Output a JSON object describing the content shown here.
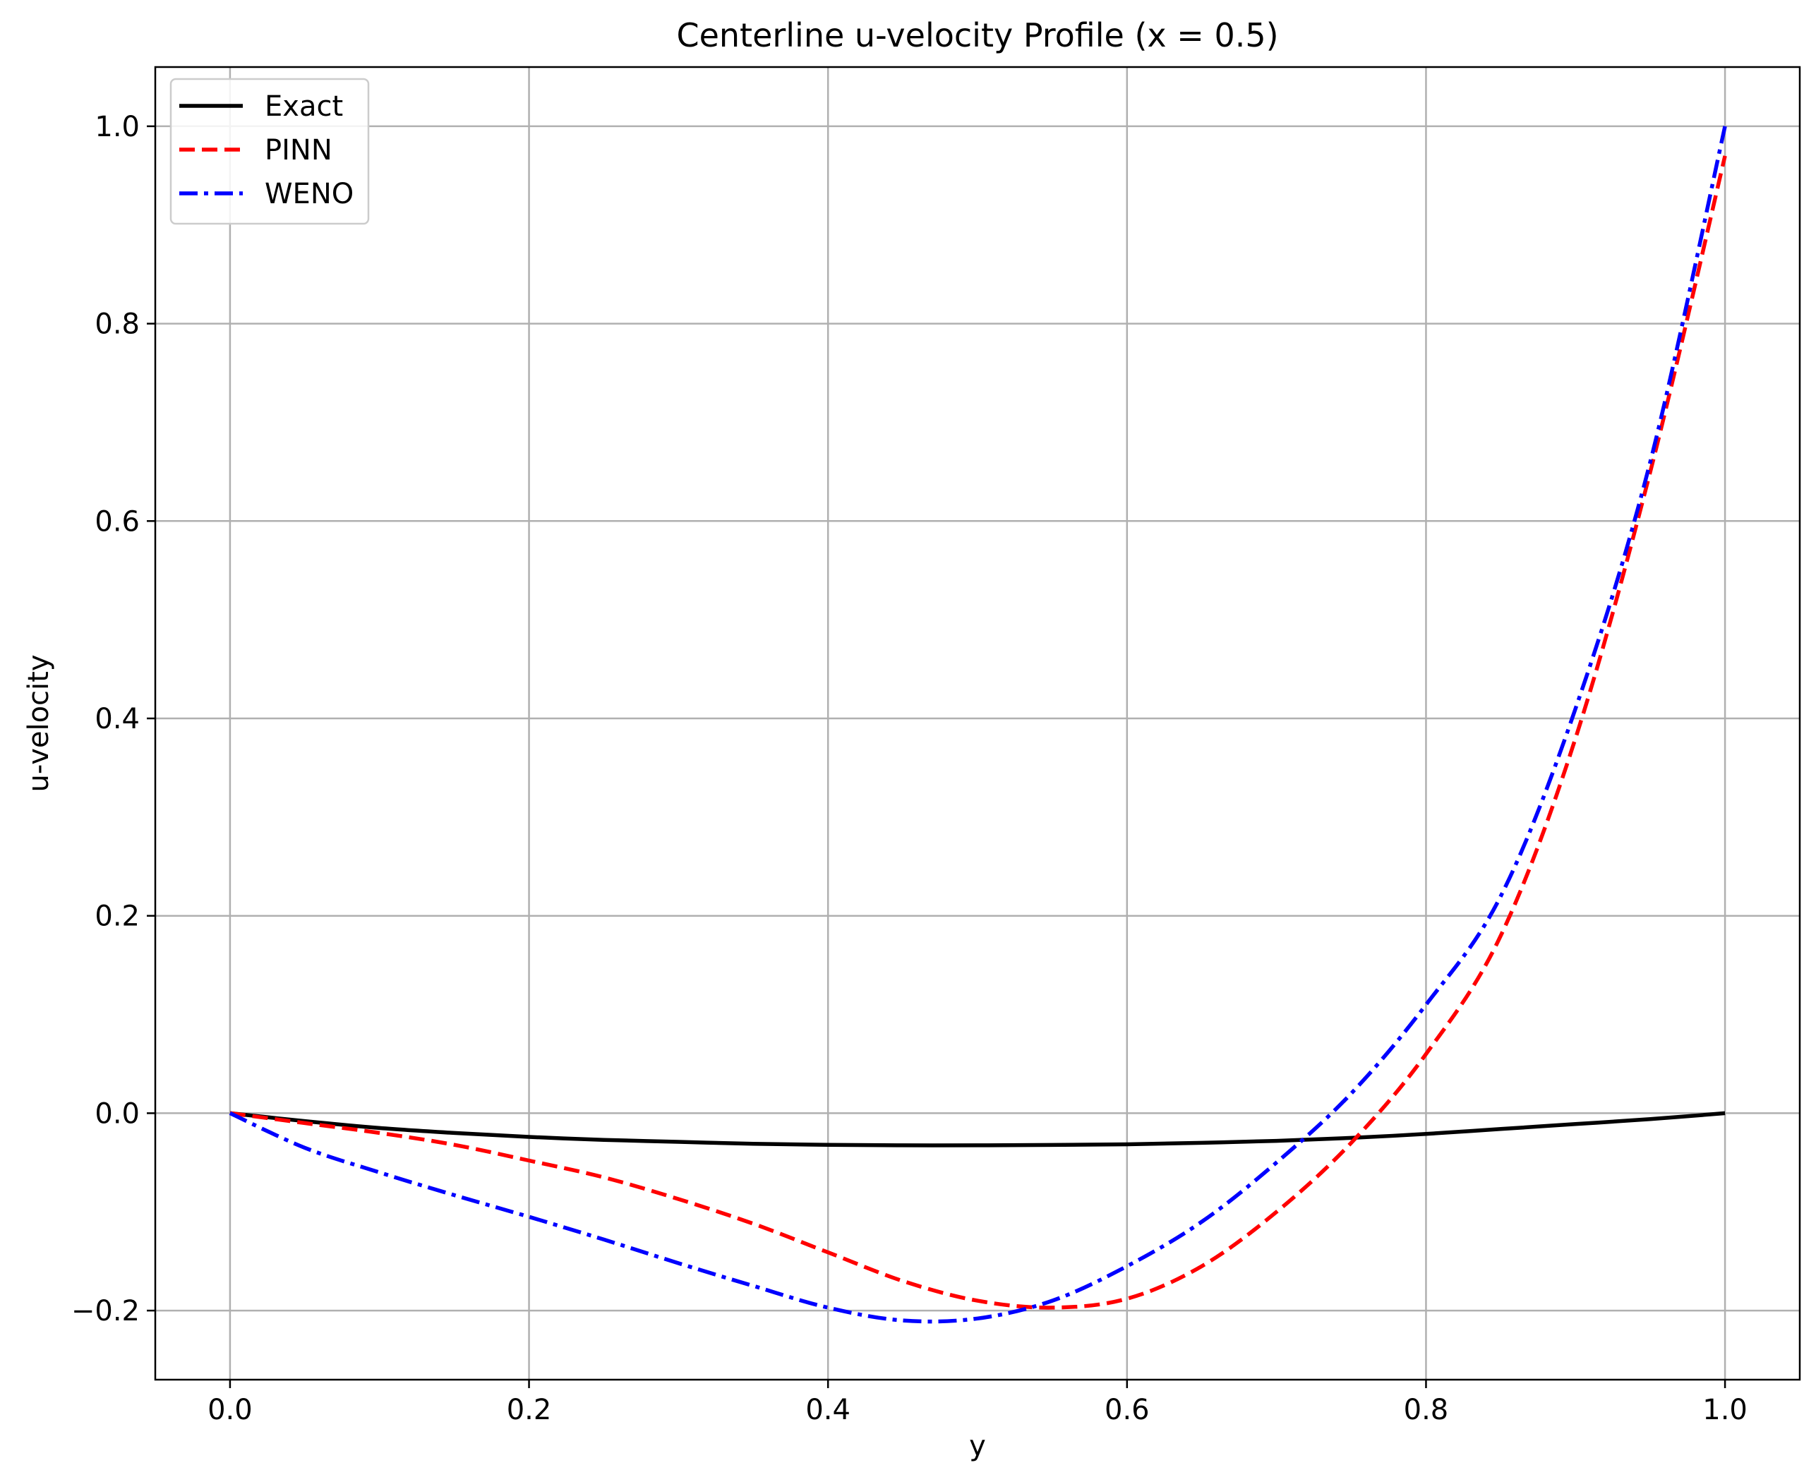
{
  "chart_data": {
    "type": "line",
    "title": "Centerline u-velocity Profile (x = 0.5)",
    "xlabel": "y",
    "ylabel": "u-velocity",
    "xlim": [
      -0.05,
      1.05
    ],
    "ylim": [
      -0.27,
      1.06
    ],
    "xticks": [
      0.0,
      0.2,
      0.4,
      0.6,
      0.8,
      1.0
    ],
    "xtick_labels": [
      "0.0",
      "0.2",
      "0.4",
      "0.6",
      "0.8",
      "1.0"
    ],
    "yticks": [
      -0.2,
      0.0,
      0.2,
      0.4,
      0.6,
      0.8,
      1.0
    ],
    "ytick_labels": [
      "−0.2",
      "0.0",
      "0.2",
      "0.4",
      "0.6",
      "0.8",
      "1.0"
    ],
    "grid": true,
    "legend_position": "top-left",
    "series": [
      {
        "name": "Exact",
        "color": "#000000",
        "style": "solid",
        "x": [
          0.0,
          0.05,
          0.1,
          0.15,
          0.2,
          0.25,
          0.3,
          0.35,
          0.4,
          0.45,
          0.5,
          0.55,
          0.6,
          0.65,
          0.7,
          0.75,
          0.8,
          0.85,
          0.9,
          0.95,
          1.0
        ],
        "y": [
          0.0,
          -0.008,
          -0.015,
          -0.02,
          -0.024,
          -0.027,
          -0.029,
          -0.031,
          -0.032,
          -0.0325,
          -0.0325,
          -0.0322,
          -0.0315,
          -0.03,
          -0.028,
          -0.025,
          -0.021,
          -0.016,
          -0.011,
          -0.006,
          0.0
        ]
      },
      {
        "name": "PINN",
        "color": "#ff0000",
        "style": "dashed",
        "x": [
          0.0,
          0.05,
          0.1,
          0.15,
          0.2,
          0.25,
          0.3,
          0.35,
          0.4,
          0.45,
          0.5,
          0.55,
          0.6,
          0.65,
          0.7,
          0.75,
          0.8,
          0.85,
          0.9,
          0.95,
          1.0
        ],
        "y": [
          0.0,
          -0.01,
          -0.02,
          -0.032,
          -0.048,
          -0.065,
          -0.087,
          -0.112,
          -0.141,
          -0.17,
          -0.19,
          -0.197,
          -0.188,
          -0.155,
          -0.1,
          -0.03,
          0.06,
          0.18,
          0.38,
          0.65,
          0.97
        ]
      },
      {
        "name": "WENO",
        "color": "#0000ff",
        "style": "dashdot",
        "x": [
          0.0,
          0.05,
          0.1,
          0.15,
          0.2,
          0.25,
          0.3,
          0.35,
          0.4,
          0.45,
          0.5,
          0.55,
          0.6,
          0.65,
          0.7,
          0.75,
          0.8,
          0.85,
          0.9,
          0.95,
          1.0
        ],
        "y": [
          0.0,
          -0.035,
          -0.06,
          -0.083,
          -0.105,
          -0.128,
          -0.152,
          -0.175,
          -0.197,
          -0.21,
          -0.208,
          -0.19,
          -0.155,
          -0.11,
          -0.05,
          0.02,
          0.11,
          0.22,
          0.41,
          0.66,
          1.0
        ]
      }
    ]
  }
}
